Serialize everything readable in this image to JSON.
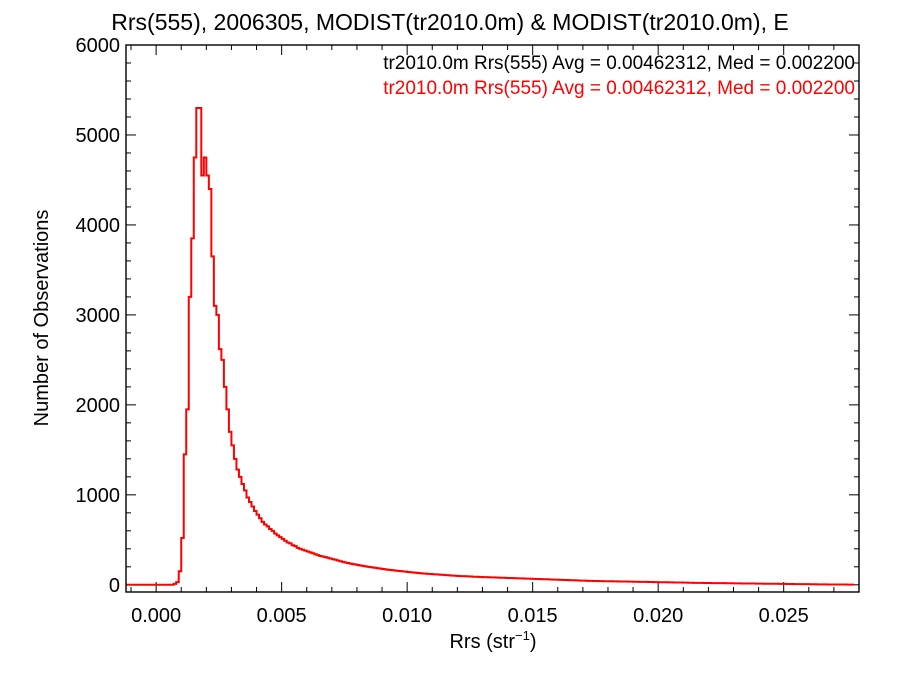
{
  "colors": {
    "axes": "#000000",
    "series_primary": "#ff0000",
    "annotation_black": "#000000",
    "annotation_red": "#ff0000",
    "background": "#ffffff"
  },
  "chart_data": {
    "type": "line",
    "style": "step-histogram",
    "title": "Rrs(555), 2006305, MODIST(tr2010.0m) & MODIST(tr2010.0m), E",
    "xlabel_base": "Rrs (str",
    "xlabel_sup": "−1",
    "xlabel_close": ")",
    "ylabel": "Number of Observations",
    "xlim": [
      -0.0012,
      0.028
    ],
    "ylim": [
      -80,
      6000
    ],
    "xticks": [
      0.0,
      0.005,
      0.01,
      0.015,
      0.02,
      0.025
    ],
    "xtick_labels": [
      "0.000",
      "0.005",
      "0.010",
      "0.015",
      "0.020",
      "0.025"
    ],
    "yticks": [
      0,
      1000,
      2000,
      3000,
      4000,
      5000,
      6000
    ],
    "ytick_labels": [
      "0",
      "1000",
      "2000",
      "3000",
      "4000",
      "5000",
      "6000"
    ],
    "grid": false,
    "annotations": [
      "tr2010.0m Rrs(555) Avg = 0.00462312, Med = 0.002200",
      "tr2010.0m Rrs(555) Avg = 0.00462312, Med = 0.002200"
    ],
    "bin_width": 0.0001,
    "series": [
      {
        "x_start": -0.0001,
        "values": [
          0,
          0,
          0,
          0,
          0,
          0,
          0,
          0,
          10,
          30,
          150,
          520,
          1450,
          1950,
          3200,
          3850,
          4750,
          5300,
          5300,
          4550,
          4750,
          4550,
          4400,
          3650,
          3100,
          3000,
          2620,
          2500,
          2200,
          1950,
          1700,
          1550,
          1400,
          1280,
          1200,
          1120,
          1050,
          970,
          920,
          870,
          820,
          780,
          740,
          700,
          670,
          650,
          620,
          600,
          570,
          550,
          530,
          510,
          490,
          470,
          460,
          440,
          430,
          410,
          400,
          390,
          380,
          370,
          360,
          350,
          340,
          330,
          320,
          315,
          308,
          300,
          292,
          285,
          278,
          270,
          262,
          255,
          248,
          242,
          236,
          230,
          225,
          220,
          215,
          210,
          205,
          200,
          196,
          192,
          188,
          184,
          180,
          176,
          172,
          168,
          165,
          162,
          158,
          155,
          152,
          149,
          146,
          143,
          140,
          137,
          134,
          131,
          128,
          126,
          124,
          122,
          120,
          118,
          116,
          114,
          112,
          110,
          108,
          106,
          104,
          102,
          100,
          98,
          97,
          96,
          95,
          94,
          92,
          90,
          89,
          88,
          87,
          86,
          85,
          84,
          83,
          82,
          81,
          80,
          79,
          78,
          77,
          76,
          75,
          74,
          73,
          72,
          71,
          70,
          69,
          68,
          67,
          66,
          65,
          64,
          63,
          62,
          61,
          60,
          59,
          58,
          57,
          56,
          55,
          54,
          53,
          52,
          51,
          50,
          49,
          48,
          47,
          46,
          45,
          44,
          43,
          42,
          42,
          41,
          41,
          40,
          40,
          39,
          39,
          38,
          38,
          37,
          37,
          36,
          36,
          35,
          35,
          34,
          34,
          33,
          33,
          32,
          32,
          31,
          31,
          30,
          30,
          29,
          29,
          28,
          28,
          27,
          27,
          26,
          26,
          25,
          25,
          24,
          24,
          23,
          23,
          22,
          22,
          21,
          21,
          20,
          20,
          20,
          19,
          19,
          19,
          18,
          18,
          18,
          17,
          17,
          17,
          16,
          16,
          16,
          15,
          15,
          15,
          14,
          14,
          14,
          13,
          13,
          13,
          12,
          12,
          12,
          11,
          11,
          11,
          10,
          10,
          10,
          9,
          9,
          9,
          8,
          8,
          8,
          7,
          7,
          7,
          6,
          6,
          6,
          5,
          5,
          5,
          5,
          4,
          4,
          4,
          4,
          3,
          3,
          3,
          3,
          2,
          2,
          2
        ]
      }
    ]
  }
}
